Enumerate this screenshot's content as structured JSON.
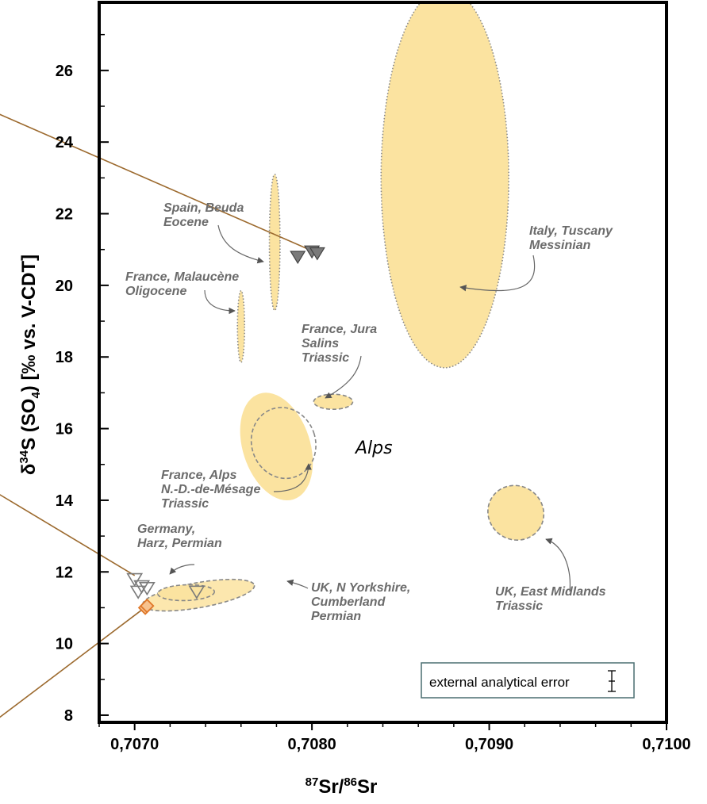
{
  "chart_data": {
    "type": "scatter",
    "xlim": [
      0.7068,
      0.71
    ],
    "ylim": [
      7.8,
      27.9
    ],
    "x_ticks": [
      {
        "value": 0.707,
        "label": "0,7070"
      },
      {
        "value": 0.708,
        "label": "0,7080"
      },
      {
        "value": 0.709,
        "label": "0,7090"
      },
      {
        "value": 0.71,
        "label": "0,7100"
      }
    ],
    "y_ticks": [
      {
        "value": 8,
        "label": "8"
      },
      {
        "value": 10,
        "label": "10"
      },
      {
        "value": 12,
        "label": "12"
      },
      {
        "value": 14,
        "label": "14"
      },
      {
        "value": 16,
        "label": "16"
      },
      {
        "value": 18,
        "label": "18"
      },
      {
        "value": 20,
        "label": "20"
      },
      {
        "value": 22,
        "label": "22"
      },
      {
        "value": 24,
        "label": "24"
      },
      {
        "value": 26,
        "label": "26"
      }
    ],
    "xlabel": {
      "sup1": "87",
      "main1": "Sr/",
      "sup2": "86",
      "main2": "Sr"
    },
    "ylabel": {
      "delta": "δ",
      "sup": "34",
      "main1": "S (SO",
      "sub": "4",
      "main2": ") [‰ vs. V-CDT]"
    },
    "fill_color": "#fbe3a0",
    "outline_color": "#888888",
    "marker_dark_color": "#7a7a7a",
    "marker_orange_color": "#e0782a",
    "leader_line_color": "#9c6a2e",
    "legend": {
      "label": "external analytical error",
      "icon": "error-bar-icon"
    },
    "alps_label": "Alps",
    "regions": [
      {
        "name": "Italy, Tuscany Messinian",
        "lines": [
          "Italy, Tuscany",
          "Messinian"
        ],
        "x": 0.70875,
        "y": 23.0,
        "rx": 0.00036,
        "ry": 5.3,
        "rot": 0,
        "outline": "dotted"
      },
      {
        "name": "Spain, Beuda Eocene",
        "lines": [
          "Spain, Beuda",
          "Eocene"
        ],
        "x": 0.70779,
        "y": 21.2,
        "rx": 3e-05,
        "ry": 1.9,
        "rot": 0,
        "outline": "dotted"
      },
      {
        "name": "France, Malaucène Oligocene",
        "lines": [
          "France, Malaucène",
          "Oligocene"
        ],
        "x": 0.7076,
        "y": 18.85,
        "rx": 2e-05,
        "ry": 1.0,
        "rot": 0,
        "outline": "dotted"
      },
      {
        "name": "France, Jura Salins Triassic",
        "lines": [
          "France, Jura",
          "Salins",
          "Triassic"
        ],
        "x": 0.70812,
        "y": 16.75,
        "rx": 0.00011,
        "ry": 0.21,
        "rot": 0,
        "outline": "dashed"
      },
      {
        "name": "France, Alps N.-D.-de-Mésage Triassic",
        "lines": [
          "France, Alps",
          "N.-D.-de-Mésage",
          "Triassic"
        ],
        "x": 0.7078,
        "y": 15.5,
        "rx": 0.00019,
        "ry": 1.55,
        "rot": -18,
        "outline": "none",
        "inner": {
          "x": 0.70784,
          "y": 15.6,
          "rx": 0.00018,
          "ry": 1.0,
          "rot": -18
        }
      },
      {
        "name": "UK, East Midlands Triassic",
        "lines": [
          "UK, East Midlands",
          "Triassic"
        ],
        "x": 0.70915,
        "y": 13.65,
        "rx": 0.00016,
        "ry": 0.75,
        "rot": 33,
        "outline": "dashed"
      },
      {
        "name": "UK, N Yorkshire, Cumberland Permian",
        "lines": [
          "UK, N Yorkshire,",
          "Cumberland",
          "Permian"
        ],
        "x": 0.70736,
        "y": 11.35,
        "rx": 0.00032,
        "ry": 0.35,
        "rot": -10,
        "outline": "dashed"
      },
      {
        "name": "Germany, Harz, Permian",
        "lines": [
          "Germany,",
          "Harz, Permian"
        ],
        "x": 0.70729,
        "y": 11.42,
        "rx": 0.00016,
        "ry": 0.22,
        "rot": -2,
        "outline": "dashed"
      }
    ],
    "markers": [
      {
        "x": 0.70792,
        "y": 20.8,
        "style": "filled-triangle-down"
      },
      {
        "x": 0.708,
        "y": 20.95,
        "style": "filled-triangle-down"
      },
      {
        "x": 0.70803,
        "y": 20.9,
        "style": "filled-triangle-down"
      },
      {
        "x": 0.707,
        "y": 11.8,
        "style": "open-triangle-down"
      },
      {
        "x": 0.70704,
        "y": 11.6,
        "style": "open-triangle-down"
      },
      {
        "x": 0.70707,
        "y": 11.55,
        "style": "open-triangle-down"
      },
      {
        "x": 0.70702,
        "y": 11.45,
        "style": "open-triangle-down"
      },
      {
        "x": 0.70735,
        "y": 11.45,
        "style": "open-triangle-down"
      },
      {
        "x": 0.70706,
        "y": 11.0,
        "style": "open-diamond-orange"
      },
      {
        "x": 0.70707,
        "y": 11.05,
        "style": "open-diamond-orange"
      }
    ]
  }
}
